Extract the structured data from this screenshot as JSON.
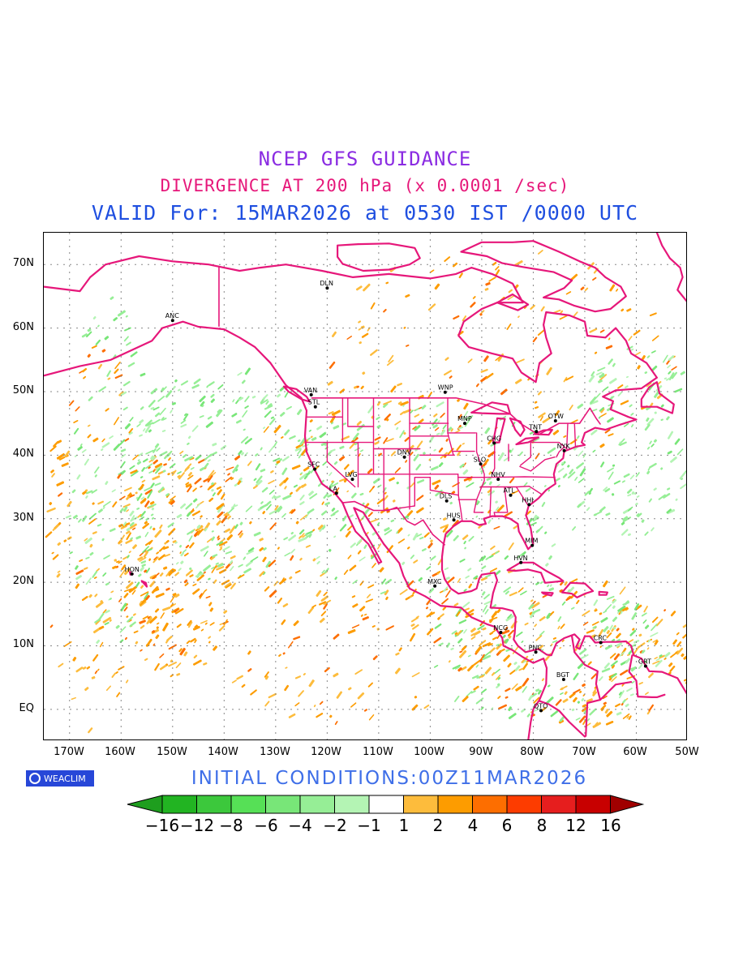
{
  "titles": {
    "line1": "NCEP GFS GUIDANCE",
    "line2": "DIVERGENCE AT 200 hPa (x 0.0001 /sec)",
    "line3": "VALID For: 15MAR2026 at 0530 IST /0000 UTC"
  },
  "initial_conditions": "INITIAL  CONDITIONS:00Z11MAR2026",
  "logo_text": "WEACLIM",
  "lat_labels": [
    "70N",
    "60N",
    "50N",
    "40N",
    "30N",
    "20N",
    "10N",
    "EQ"
  ],
  "lon_labels": [
    "170W",
    "160W",
    "150W",
    "140W",
    "130W",
    "120W",
    "110W",
    "100W",
    "90W",
    "80W",
    "70W",
    "60W",
    "50W"
  ],
  "colorbar": {
    "labels": [
      "-16",
      "-12",
      "-8",
      "-6",
      "-4",
      "-2",
      "-1",
      "1",
      "2",
      "4",
      "6",
      "8",
      "12",
      "16"
    ],
    "colors": [
      "#1e9e1e",
      "#22b422",
      "#3cc83c",
      "#56e056",
      "#78e678",
      "#96ee96",
      "#b4f4b4",
      "#ffffff",
      "#fdbc3c",
      "#fd9c00",
      "#fd6e00",
      "#fd3c00",
      "#e61e1e",
      "#c80000",
      "#a00000"
    ]
  },
  "map": {
    "extent": {
      "lon_min": -175,
      "lon_max": -50,
      "lat_min": -5,
      "lat_max": 75
    },
    "grid_lons": [
      -170,
      -160,
      -150,
      -140,
      -130,
      -120,
      -110,
      -100,
      -90,
      -80,
      -70,
      -60
    ],
    "grid_lats": [
      0,
      10,
      20,
      30,
      40,
      50,
      60,
      70
    ],
    "coast_color": "#e6177a",
    "cities": [
      {
        "name": "ANC",
        "lon": -150.0,
        "lat": 61.2
      },
      {
        "name": "DLN",
        "lon": -120.0,
        "lat": 66.3
      },
      {
        "name": "VAN",
        "lon": -123.1,
        "lat": 49.5
      },
      {
        "name": "STL",
        "lon": -122.3,
        "lat": 47.6
      },
      {
        "name": "WNP",
        "lon": -97.1,
        "lat": 49.9
      },
      {
        "name": "MNP",
        "lon": -93.3,
        "lat": 45.0
      },
      {
        "name": "TNT",
        "lon": -79.4,
        "lat": 43.7
      },
      {
        "name": "OTW",
        "lon": -75.7,
        "lat": 45.4
      },
      {
        "name": "CHG",
        "lon": -87.6,
        "lat": 41.9
      },
      {
        "name": "NYK",
        "lon": -74.0,
        "lat": 40.7
      },
      {
        "name": "DNV",
        "lon": -105.0,
        "lat": 39.7
      },
      {
        "name": "SFC",
        "lon": -122.4,
        "lat": 37.8
      },
      {
        "name": "LVG",
        "lon": -115.1,
        "lat": 36.2
      },
      {
        "name": "SLO",
        "lon": -90.2,
        "lat": 38.6
      },
      {
        "name": "NHV",
        "lon": -86.8,
        "lat": 36.2
      },
      {
        "name": "LA",
        "lon": -118.2,
        "lat": 34.0
      },
      {
        "name": "ATL",
        "lon": -84.4,
        "lat": 33.7
      },
      {
        "name": "DLS",
        "lon": -96.8,
        "lat": 32.8
      },
      {
        "name": "HHI",
        "lon": -80.8,
        "lat": 32.2
      },
      {
        "name": "HUS",
        "lon": -95.4,
        "lat": 29.8
      },
      {
        "name": "MIM",
        "lon": -80.2,
        "lat": 25.8
      },
      {
        "name": "HVN",
        "lon": -82.4,
        "lat": 23.1
      },
      {
        "name": "HON",
        "lon": -157.9,
        "lat": 21.3
      },
      {
        "name": "MXC",
        "lon": -99.1,
        "lat": 19.4
      },
      {
        "name": "NCG",
        "lon": -86.3,
        "lat": 12.1
      },
      {
        "name": "CRC",
        "lon": -66.9,
        "lat": 10.5
      },
      {
        "name": "PNC",
        "lon": -79.5,
        "lat": 9.0
      },
      {
        "name": "GRT",
        "lon": -58.2,
        "lat": 6.8
      },
      {
        "name": "BGT",
        "lon": -74.1,
        "lat": 4.7
      },
      {
        "name": "QTO",
        "lon": -78.5,
        "lat": -0.2
      }
    ]
  }
}
